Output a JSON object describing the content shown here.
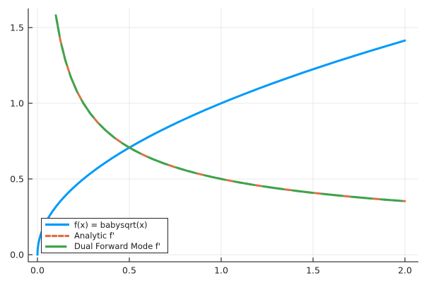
{
  "chart_data": {
    "type": "line",
    "title": "",
    "xlabel": "",
    "ylabel": "",
    "grid": true,
    "legend_position": "bottom-left",
    "xlim": [
      -0.05,
      2.073
    ],
    "ylim": [
      -0.047,
      1.626
    ],
    "xticks": [
      0.0,
      0.5,
      1.0,
      1.5,
      2.0
    ],
    "yticks": [
      0.0,
      0.5,
      1.0,
      1.5
    ],
    "xtick_labels": [
      "0.0",
      "0.5",
      "1.0",
      "1.5",
      "2.0"
    ],
    "ytick_labels": [
      "0.0",
      "0.5",
      "1.0",
      "1.5"
    ],
    "series": [
      {
        "name": "f(x) = babysqrt(x)",
        "color": "#009AFA",
        "linestyle": "solid",
        "linewidth": 3,
        "x": [
          0,
          0.0013,
          0.005,
          0.0113,
          0.02,
          0.0313,
          0.045,
          0.0613,
          0.08,
          0.1013,
          0.125,
          0.1513,
          0.18,
          0.2113,
          0.245,
          0.2813,
          0.32,
          0.3613,
          0.405,
          0.4513,
          0.5,
          0.5513,
          0.605,
          0.6613,
          0.72,
          0.7813,
          0.845,
          0.9113,
          0.98,
          1.0513,
          1.125,
          1.2013,
          1.28,
          1.3613,
          1.445,
          1.5313,
          1.62,
          1.7113,
          1.805,
          1.9013,
          2.0
        ],
        "y": [
          0,
          0.0354,
          0.0707,
          0.1061,
          0.1414,
          0.1768,
          0.2121,
          0.2475,
          0.2828,
          0.3182,
          0.3536,
          0.3889,
          0.4243,
          0.4596,
          0.495,
          0.5303,
          0.5657,
          0.601,
          0.6364,
          0.6718,
          0.7071,
          0.7425,
          0.7778,
          0.8132,
          0.8485,
          0.8839,
          0.9192,
          0.9546,
          0.9899,
          1.0253,
          1.0607,
          1.096,
          1.1314,
          1.1667,
          1.2021,
          1.2374,
          1.2728,
          1.3081,
          1.3435,
          1.3789,
          1.4142
        ]
      },
      {
        "name": "Analytic f'",
        "color": "#E26F46",
        "linestyle": "dash",
        "linewidth": 3,
        "x": [
          0.1,
          0.1245,
          0.1517,
          0.1815,
          0.214,
          0.2492,
          0.2871,
          0.3277,
          0.3709,
          0.4168,
          0.4654,
          0.5167,
          0.5706,
          0.6273,
          0.6866,
          0.7486,
          0.8133,
          0.8806,
          0.9506,
          1.0233,
          1.0987,
          1.1768,
          1.2575,
          1.341,
          1.4271,
          1.5158,
          1.6073,
          1.7014,
          1.7983,
          1.8978,
          2.0
        ],
        "y": [
          1.5811,
          1.4171,
          1.2839,
          1.1737,
          1.0808,
          1.0016,
          0.9331,
          0.8735,
          0.821,
          0.7744,
          0.7329,
          0.6956,
          0.6619,
          0.6313,
          0.6034,
          0.5779,
          0.5544,
          0.5328,
          0.5128,
          0.4943,
          0.477,
          0.4609,
          0.4459,
          0.4318,
          0.4185,
          0.4061,
          0.3944,
          0.3832,
          0.3727,
          0.3626,
          0.3536
        ]
      },
      {
        "name": "Dual Forward Mode f'",
        "color": "#3DA44D",
        "linestyle": "longdash",
        "linewidth": 3,
        "x": [
          0.1,
          0.1245,
          0.1517,
          0.1815,
          0.214,
          0.2492,
          0.2871,
          0.3277,
          0.3709,
          0.4168,
          0.4654,
          0.5167,
          0.5706,
          0.6273,
          0.6866,
          0.7486,
          0.8133,
          0.8806,
          0.9506,
          1.0233,
          1.0987,
          1.1768,
          1.2575,
          1.341,
          1.4271,
          1.5158,
          1.6073,
          1.7014,
          1.7983,
          1.8978,
          2.0
        ],
        "y": [
          1.5811,
          1.4171,
          1.2839,
          1.1737,
          1.0808,
          1.0016,
          0.9331,
          0.8735,
          0.821,
          0.7744,
          0.7329,
          0.6956,
          0.6619,
          0.6313,
          0.6034,
          0.5779,
          0.5544,
          0.5328,
          0.5128,
          0.4943,
          0.477,
          0.4609,
          0.4459,
          0.4318,
          0.4185,
          0.4061,
          0.3944,
          0.3832,
          0.3727,
          0.3626,
          0.3536
        ]
      }
    ]
  },
  "colors": {
    "background": "#FFFFFF",
    "spine": "#3C3C40",
    "grid": "#E9E9EC",
    "tick_text": "#26262A"
  }
}
